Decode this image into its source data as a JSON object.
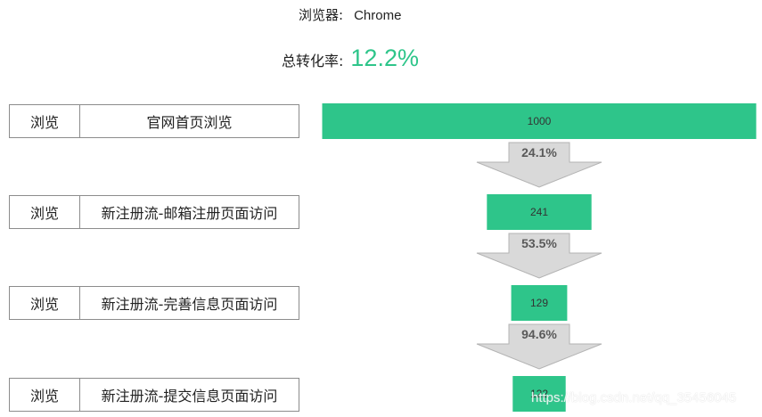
{
  "header": {
    "browser_label": "浏览器:",
    "browser_value": "Chrome",
    "rate_label": "总转化率:",
    "rate_value": "12.2%"
  },
  "steps": [
    {
      "category": "浏览",
      "stage": "官网首页浏览"
    },
    {
      "category": "浏览",
      "stage": "新注册流-邮箱注册页面访问"
    },
    {
      "category": "浏览",
      "stage": "新注册流-完善信息页面访问"
    },
    {
      "category": "浏览",
      "stage": "新注册流-提交信息页面访问"
    }
  ],
  "chart_data": {
    "type": "bar",
    "categories": [
      "官网首页浏览",
      "新注册流-邮箱注册页面访问",
      "新注册流-完善信息页面访问",
      "新注册流-提交信息页面访问"
    ],
    "values": [
      1000,
      241,
      129,
      122
    ],
    "value_labels": [
      "1000",
      "241",
      "129",
      "122"
    ],
    "conversion_rates": [
      "24.1%",
      "53.5%",
      "94.6%"
    ],
    "xlim": [
      0,
      1000
    ]
  },
  "colors": {
    "bar": "#2ec58a",
    "rate": "#2ec58a",
    "arrow_fill": "#d9d9d9",
    "arrow_stroke": "#b3b3b3",
    "rate_text": "#595959"
  },
  "watermark": "https://blog.csdn.net/qq_35456045"
}
